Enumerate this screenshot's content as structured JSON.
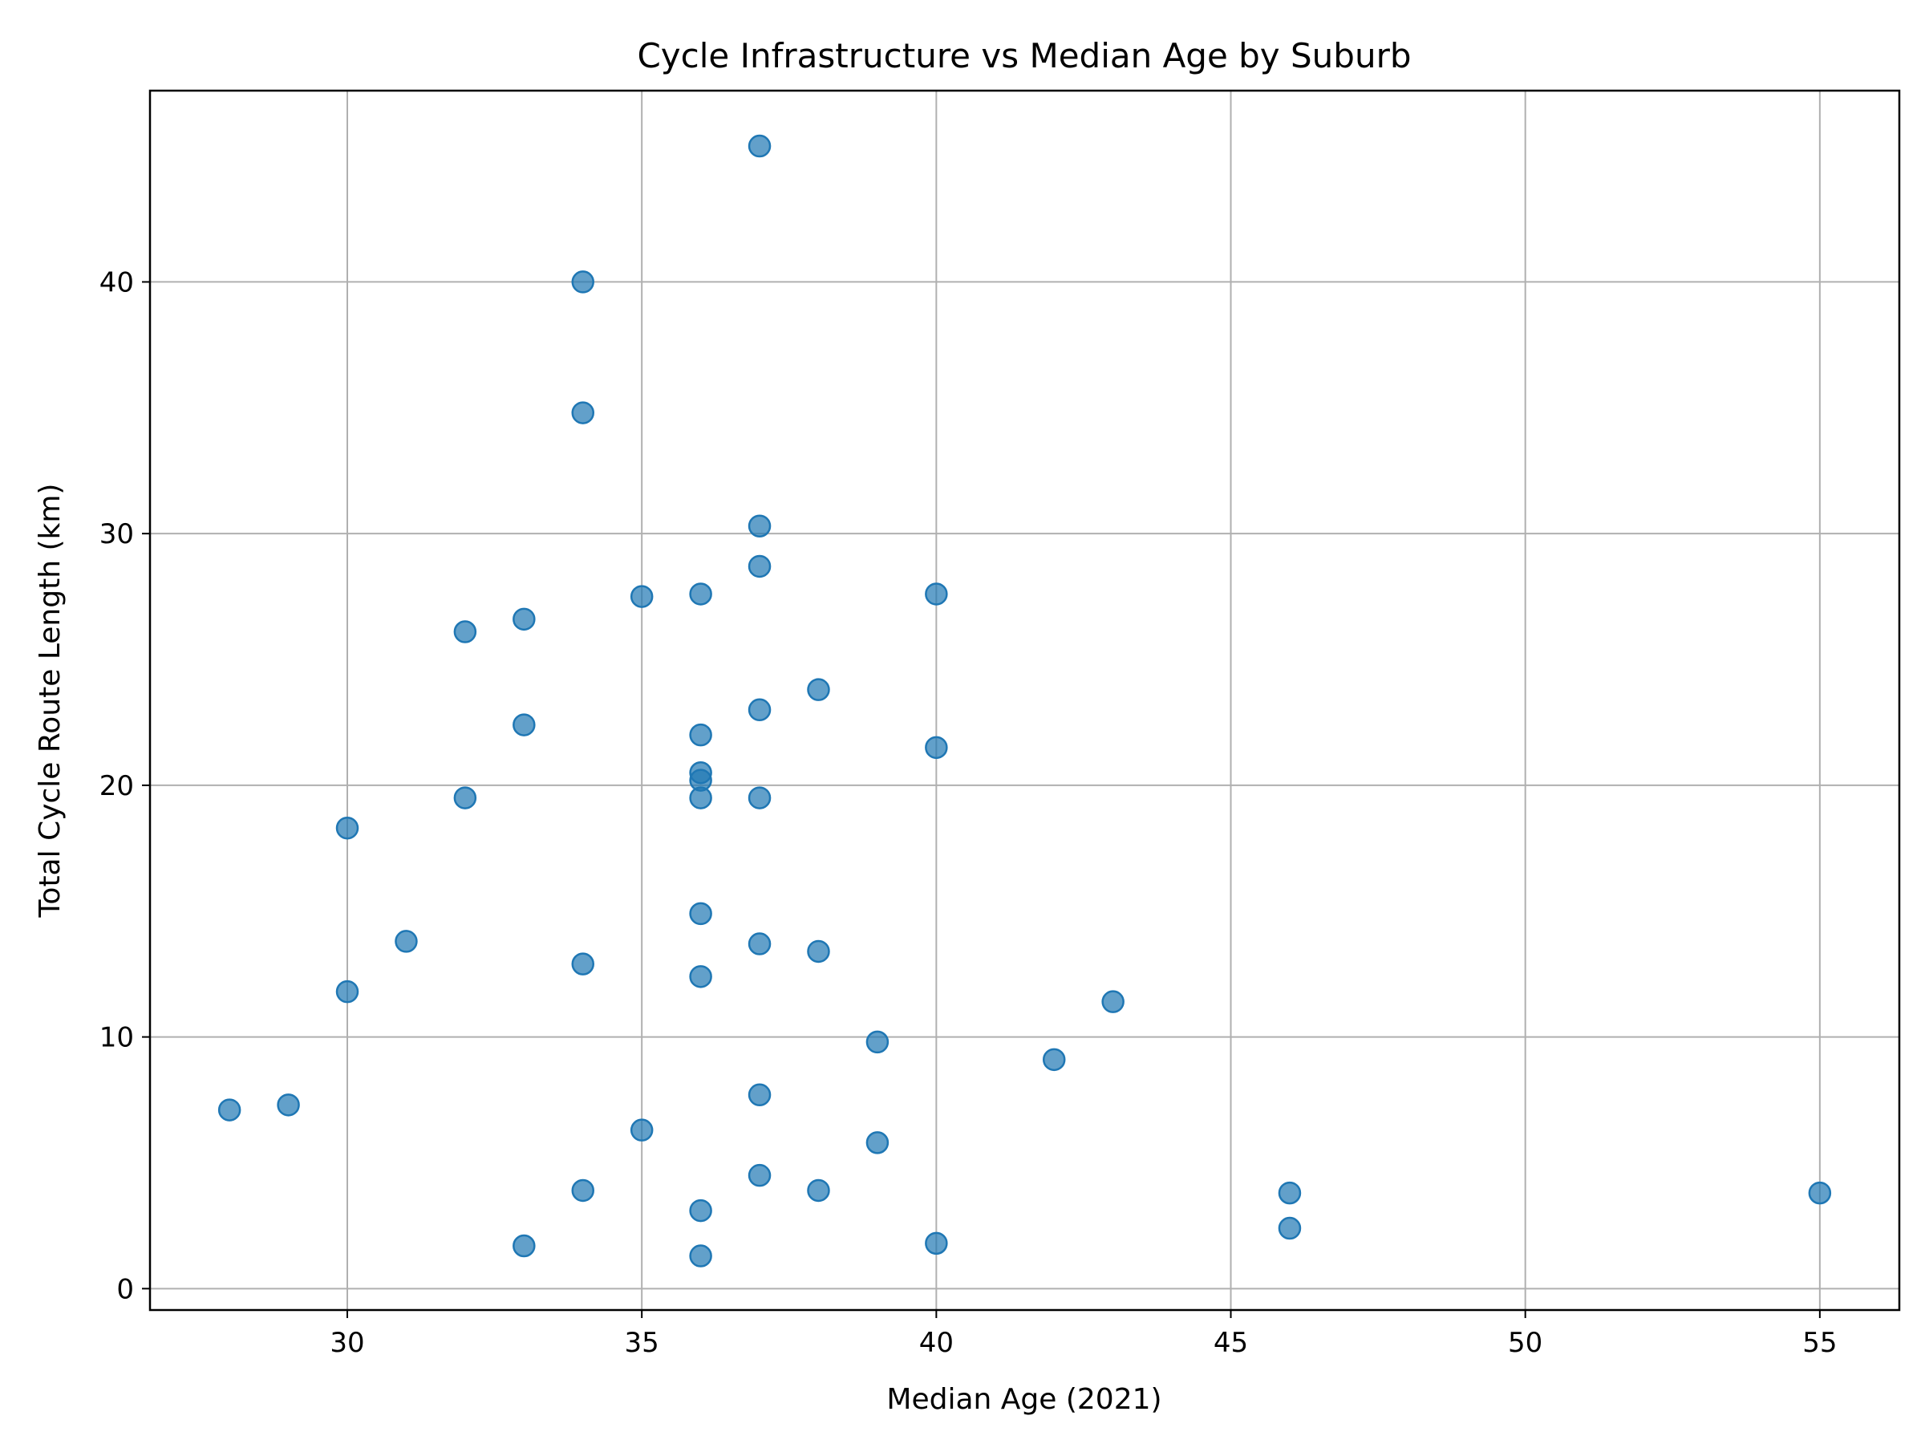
{
  "chart_data": {
    "type": "scatter",
    "title": "Cycle Infrastructure vs Median Age by Suburb",
    "xlabel": "Median Age (2021)",
    "ylabel": "Total Cycle Route Length (km)",
    "xlim": [
      26.65,
      56.35
    ],
    "ylim": [
      -0.85,
      47.6
    ],
    "xticks": [
      30,
      35,
      40,
      45,
      50,
      55
    ],
    "yticks": [
      0,
      10,
      20,
      30,
      40
    ],
    "grid": true,
    "marker_color": "#1f77b4",
    "marker_alpha": 0.7,
    "points": [
      {
        "x": 28,
        "y": 7.1
      },
      {
        "x": 29,
        "y": 7.3
      },
      {
        "x": 30,
        "y": 18.3
      },
      {
        "x": 30,
        "y": 11.8
      },
      {
        "x": 31,
        "y": 13.8
      },
      {
        "x": 32,
        "y": 26.1
      },
      {
        "x": 32,
        "y": 19.5
      },
      {
        "x": 33,
        "y": 26.6
      },
      {
        "x": 33,
        "y": 22.4
      },
      {
        "x": 33,
        "y": 1.7
      },
      {
        "x": 34,
        "y": 40.0
      },
      {
        "x": 34,
        "y": 34.8
      },
      {
        "x": 34,
        "y": 12.9
      },
      {
        "x": 34,
        "y": 3.9
      },
      {
        "x": 35,
        "y": 27.5
      },
      {
        "x": 35,
        "y": 6.3
      },
      {
        "x": 36,
        "y": 27.6
      },
      {
        "x": 36,
        "y": 22.0
      },
      {
        "x": 36,
        "y": 20.5
      },
      {
        "x": 36,
        "y": 20.2
      },
      {
        "x": 36,
        "y": 19.5
      },
      {
        "x": 36,
        "y": 14.9
      },
      {
        "x": 36,
        "y": 12.4
      },
      {
        "x": 36,
        "y": 3.1
      },
      {
        "x": 36,
        "y": 1.3
      },
      {
        "x": 37,
        "y": 45.4
      },
      {
        "x": 37,
        "y": 30.3
      },
      {
        "x": 37,
        "y": 28.7
      },
      {
        "x": 37,
        "y": 23.0
      },
      {
        "x": 37,
        "y": 19.5
      },
      {
        "x": 37,
        "y": 13.7
      },
      {
        "x": 37,
        "y": 7.7
      },
      {
        "x": 37,
        "y": 4.5
      },
      {
        "x": 38,
        "y": 23.8
      },
      {
        "x": 38,
        "y": 13.4
      },
      {
        "x": 38,
        "y": 3.9
      },
      {
        "x": 39,
        "y": 9.8
      },
      {
        "x": 39,
        "y": 5.8
      },
      {
        "x": 40,
        "y": 27.6
      },
      {
        "x": 40,
        "y": 21.5
      },
      {
        "x": 40,
        "y": 1.8
      },
      {
        "x": 42,
        "y": 9.1
      },
      {
        "x": 43,
        "y": 11.4
      },
      {
        "x": 46,
        "y": 3.8
      },
      {
        "x": 46,
        "y": 2.4
      },
      {
        "x": 55,
        "y": 3.8
      }
    ]
  }
}
